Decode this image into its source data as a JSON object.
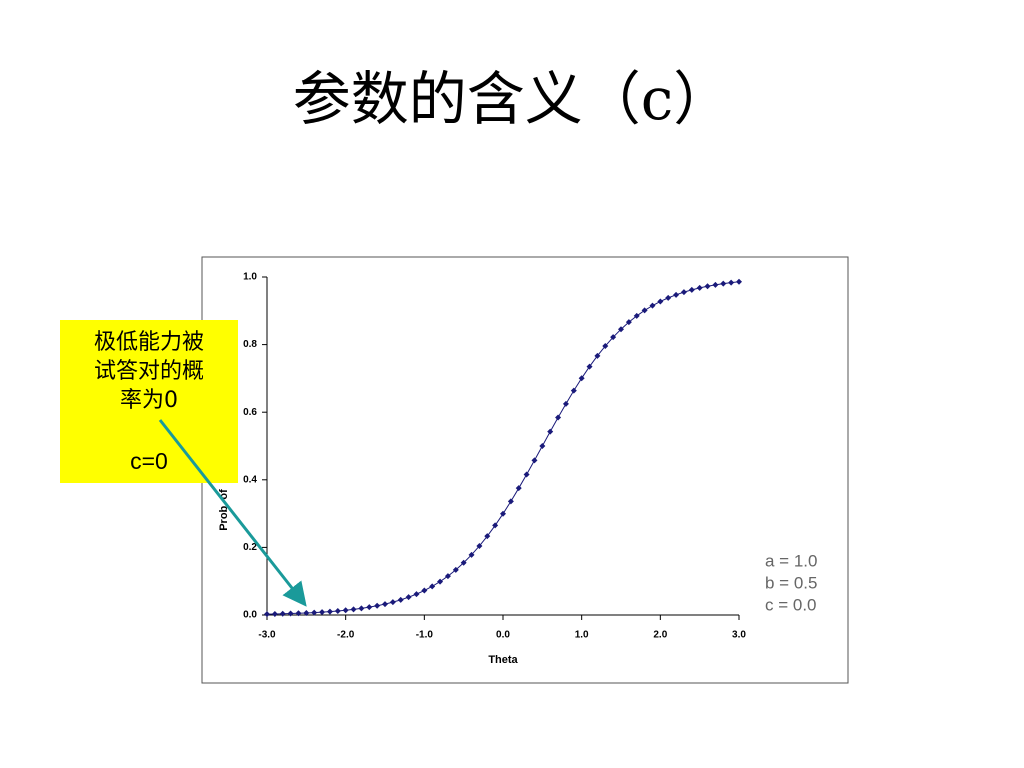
{
  "title": "参数的含义（c）",
  "callout": {
    "text": "极低能力被试答对的概率为0",
    "label": "c=0"
  },
  "chart_data": {
    "type": "line",
    "x_label": "Theta",
    "y_label": "Prob. of",
    "parameters": [
      "a = 1.0",
      "b = 0.5",
      "c = 0.0"
    ],
    "x": [
      -3.0,
      -2.9,
      -2.8,
      -2.7,
      -2.6,
      -2.5,
      -2.4,
      -2.3,
      -2.2,
      -2.1,
      -2.0,
      -1.9,
      -1.8,
      -1.7,
      -1.6,
      -1.5,
      -1.4,
      -1.3,
      -1.2,
      -1.1,
      -1.0,
      -0.9,
      -0.8,
      -0.7,
      -0.6,
      -0.5,
      -0.4,
      -0.3,
      -0.2,
      -0.1,
      0.0,
      0.1,
      0.2,
      0.3,
      0.4,
      0.5,
      0.6,
      0.7,
      0.8,
      0.9,
      1.0,
      1.1,
      1.2,
      1.3,
      1.4,
      1.5,
      1.6,
      1.7,
      1.8,
      1.9,
      2.0,
      2.1,
      2.2,
      2.3,
      2.4,
      2.5,
      2.6,
      2.7,
      2.8,
      2.9,
      3.0
    ],
    "series": [
      {
        "color": "#1a1a7a",
        "values": [
          0.0026,
          0.0031,
          0.0036,
          0.0043,
          0.0051,
          0.0061,
          0.0072,
          0.0085,
          0.0101,
          0.0119,
          0.0141,
          0.0166,
          0.0196,
          0.0232,
          0.0274,
          0.0323,
          0.0381,
          0.0448,
          0.0527,
          0.0618,
          0.0724,
          0.0847,
          0.0988,
          0.1151,
          0.1335,
          0.1545,
          0.178,
          0.2042,
          0.2333,
          0.265,
          0.2994,
          0.3363,
          0.3752,
          0.4158,
          0.4576,
          0.5,
          0.5424,
          0.5842,
          0.6248,
          0.6637,
          0.7006,
          0.735,
          0.7667,
          0.7958,
          0.822,
          0.8455,
          0.8665,
          0.8849,
          0.9012,
          0.9153,
          0.9276,
          0.9382,
          0.9473,
          0.9552,
          0.9619,
          0.9677,
          0.9726,
          0.9768,
          0.9804,
          0.9834,
          0.9859
        ]
      }
    ],
    "xlim": [
      -3,
      3
    ],
    "ylim": [
      0,
      1
    ],
    "xticks": [
      {
        "value": -3,
        "label": "-3.0"
      },
      {
        "value": -2,
        "label": "-2.0"
      },
      {
        "value": -1,
        "label": "-1.0"
      },
      {
        "value": 0,
        "label": "0.0"
      },
      {
        "value": 1,
        "label": "1.0"
      },
      {
        "value": 2,
        "label": "2.0"
      },
      {
        "value": 3,
        "label": "3.0"
      }
    ],
    "yticks": [
      {
        "value": 0,
        "label": "0.0"
      },
      0.2,
      0.4,
      0.6,
      0.8,
      {
        "value": 1,
        "label": "1.0"
      }
    ]
  }
}
